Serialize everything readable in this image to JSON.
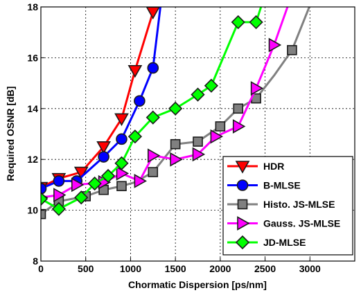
{
  "chart_data": {
    "type": "line",
    "title": "",
    "xlabel": "Chormatic Dispersion [ps/nm]",
    "ylabel": "Required OSNR [dB]",
    "xlim": [
      0,
      3500
    ],
    "ylim": [
      8,
      18
    ],
    "xticks": [
      0,
      500,
      1000,
      1500,
      2000,
      2500,
      3000
    ],
    "yticks": [
      8,
      10,
      12,
      14,
      16,
      18
    ],
    "grid": true,
    "legend_position": "bottom-right",
    "series": [
      {
        "name": "HDR",
        "color": "#ff0000",
        "marker": "triangle-down",
        "x": [
          0,
          200,
          450,
          700,
          900,
          1050,
          1250,
          1300
        ],
        "y": [
          10.9,
          11.25,
          11.5,
          12.5,
          13.6,
          15.5,
          17.8,
          18.5
        ],
        "markers": [
          true,
          true,
          true,
          true,
          true,
          true,
          true,
          false
        ]
      },
      {
        "name": "B-MLSE",
        "color": "#0000ff",
        "marker": "circle",
        "x": [
          0,
          200,
          400,
          700,
          900,
          1100,
          1250,
          1350
        ],
        "y": [
          10.85,
          11.15,
          11.15,
          12.1,
          12.8,
          14.3,
          15.6,
          18.5
        ],
        "markers": [
          true,
          true,
          true,
          true,
          true,
          true,
          true,
          false
        ]
      },
      {
        "name": "Histo. JS-MLSE",
        "color": "#808080",
        "marker": "square",
        "x": [
          0,
          200,
          500,
          700,
          900,
          1050,
          1250,
          1500,
          1750,
          2000,
          2200,
          2400,
          2600,
          2800,
          3050
        ],
        "y": [
          9.85,
          10.35,
          10.55,
          10.8,
          10.95,
          11.1,
          11.5,
          12.6,
          12.7,
          13.3,
          14.0,
          14.4,
          15.3,
          16.3,
          18.5
        ],
        "markers": [
          true,
          true,
          true,
          true,
          true,
          false,
          true,
          true,
          true,
          true,
          true,
          true,
          false,
          true,
          false
        ]
      },
      {
        "name": "Gauss. JS-MLSE",
        "color": "#ff00ff",
        "marker": "triangle-right",
        "x": [
          0,
          200,
          400,
          700,
          900,
          1100,
          1250,
          1500,
          1750,
          1950,
          2200,
          2400,
          2600,
          2800
        ],
        "y": [
          10.5,
          10.6,
          11.0,
          11.1,
          11.45,
          11.15,
          12.15,
          12.0,
          12.2,
          12.9,
          13.3,
          14.8,
          16.5,
          18.5
        ],
        "markers": [
          true,
          true,
          true,
          true,
          true,
          true,
          true,
          true,
          true,
          true,
          true,
          true,
          true,
          false
        ]
      },
      {
        "name": "JD-MLSE",
        "color": "#00ff00",
        "marker": "diamond",
        "x": [
          0,
          200,
          450,
          600,
          750,
          900,
          1050,
          1250,
          1500,
          1750,
          1900,
          2200,
          2400,
          2500
        ],
        "y": [
          10.45,
          10.05,
          10.5,
          11.05,
          11.35,
          11.85,
          12.9,
          13.65,
          14.0,
          14.55,
          14.9,
          17.4,
          17.4,
          18.5
        ],
        "markers": [
          true,
          true,
          true,
          true,
          true,
          true,
          true,
          true,
          true,
          true,
          true,
          true,
          true,
          false
        ]
      }
    ]
  }
}
